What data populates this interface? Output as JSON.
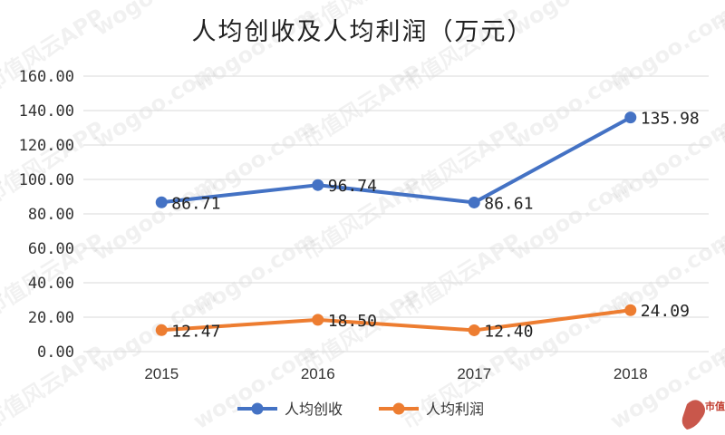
{
  "chart_data": {
    "type": "line",
    "title": "人均创收及人均利润（万元）",
    "categories": [
      "2015",
      "2016",
      "2017",
      "2018"
    ],
    "series": [
      {
        "name": "人均创收",
        "values": [
          86.71,
          96.74,
          86.61,
          135.98
        ],
        "labels": [
          "86.71",
          "96.74",
          "86.61",
          "135.98"
        ],
        "color": "#4472C4"
      },
      {
        "name": "人均利润",
        "values": [
          12.47,
          18.5,
          12.4,
          24.09
        ],
        "labels": [
          "12.47",
          "18.50",
          "12.40",
          "24.09"
        ],
        "color": "#ED7D31"
      }
    ],
    "yticks": [
      "0.00",
      "20.00",
      "40.00",
      "60.00",
      "80.00",
      "100.00",
      "120.00",
      "140.00",
      "160.00"
    ],
    "ylim": [
      0,
      160
    ],
    "grid": true,
    "legend": "bottom-center"
  },
  "watermark": {
    "text": "市值风云APP",
    "url_text": "wogoo.com"
  },
  "logo": {
    "text": "市值风云"
  },
  "colors": {
    "grid": "#d9d9d9",
    "text": "#333333"
  }
}
